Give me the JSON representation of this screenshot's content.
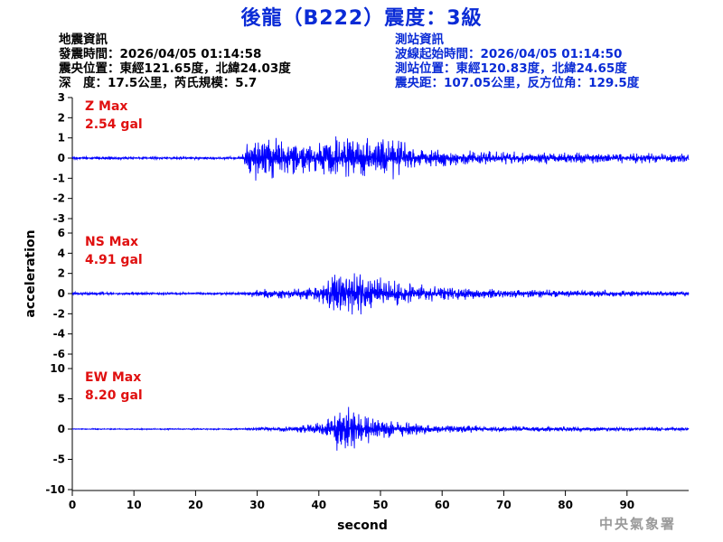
{
  "title": "後龍（B222）震度：3級",
  "event_info": {
    "heading": "地震資訊",
    "origin_time": "發震時間：2026/04/05 01:14:58",
    "epicenter": "震央位置：東經121.65度，北緯24.03度",
    "depth_magnitude": "深　度：17.5公里，芮氏規模：5.7"
  },
  "station_info": {
    "heading": "測站資訊",
    "wave_start": "波線起始時間：2026/04/05 01:14:50",
    "station_location": "測站位置：東經120.83度，北緯24.65度",
    "distance_azimuth": "震央距：107.05公里，反方位角：129.5度"
  },
  "footer": "中央氣象署",
  "colors": {
    "title": "#0a2bd6",
    "trace": "#0000ff",
    "max_label": "#e01010",
    "station_info": "#0a2bd6"
  },
  "chart_data": {
    "type": "line",
    "xlabel": "second",
    "ylabel": "acceleration",
    "xlim": [
      0,
      100
    ],
    "x_ticks": [
      0,
      10,
      20,
      30,
      40,
      50,
      60,
      70,
      80,
      90
    ],
    "grid": false,
    "panels": [
      {
        "name": "Z",
        "max_label": "Z Max",
        "max_value": "2.54 gal",
        "ylim": [
          -3,
          3
        ],
        "y_ticks": [
          -3,
          -2,
          -1,
          0,
          1,
          2,
          3
        ],
        "envelope": [
          [
            0,
            0.08
          ],
          [
            27.5,
            0.08
          ],
          [
            28.5,
            1.0
          ],
          [
            29.5,
            1.6
          ],
          [
            31,
            1.35
          ],
          [
            33,
            1.1
          ],
          [
            36,
            0.95
          ],
          [
            39,
            0.9
          ],
          [
            42,
            1.15
          ],
          [
            45,
            1.25
          ],
          [
            48,
            1.2
          ],
          [
            51,
            1.3
          ],
          [
            53,
            1.0
          ],
          [
            56,
            0.65
          ],
          [
            60,
            0.5
          ],
          [
            65,
            0.4
          ],
          [
            70,
            0.35
          ],
          [
            80,
            0.3
          ],
          [
            90,
            0.28
          ],
          [
            100,
            0.25
          ]
        ]
      },
      {
        "name": "NS",
        "max_label": "NS Max",
        "max_value": "4.91 gal",
        "ylim": [
          -6,
          6
        ],
        "y_ticks": [
          -6,
          -4,
          -2,
          0,
          2,
          4,
          6
        ],
        "envelope": [
          [
            0,
            0.15
          ],
          [
            28,
            0.15
          ],
          [
            30,
            0.5
          ],
          [
            36,
            0.6
          ],
          [
            40,
            0.9
          ],
          [
            42,
            2.3
          ],
          [
            43.5,
            3.3
          ],
          [
            45,
            2.9
          ],
          [
            47,
            2.2
          ],
          [
            50,
            1.7
          ],
          [
            53,
            1.3
          ],
          [
            57,
            0.95
          ],
          [
            62,
            0.7
          ],
          [
            70,
            0.5
          ],
          [
            80,
            0.4
          ],
          [
            90,
            0.35
          ],
          [
            100,
            0.3
          ]
        ]
      },
      {
        "name": "EW",
        "max_label": "EW Max",
        "max_value": "8.20 gal",
        "ylim": [
          -10,
          10
        ],
        "y_ticks": [
          -10,
          -5,
          0,
          5,
          10
        ],
        "envelope": [
          [
            0,
            0.1
          ],
          [
            28,
            0.15
          ],
          [
            30,
            0.4
          ],
          [
            36,
            0.6
          ],
          [
            41,
            1.2
          ],
          [
            42.5,
            3.5
          ],
          [
            43.5,
            5.5
          ],
          [
            45,
            4.0
          ],
          [
            47,
            3.0
          ],
          [
            49,
            2.2
          ],
          [
            52,
            1.6
          ],
          [
            56,
            1.1
          ],
          [
            60,
            0.8
          ],
          [
            70,
            0.55
          ],
          [
            80,
            0.45
          ],
          [
            90,
            0.4
          ],
          [
            100,
            0.35
          ]
        ]
      }
    ]
  }
}
